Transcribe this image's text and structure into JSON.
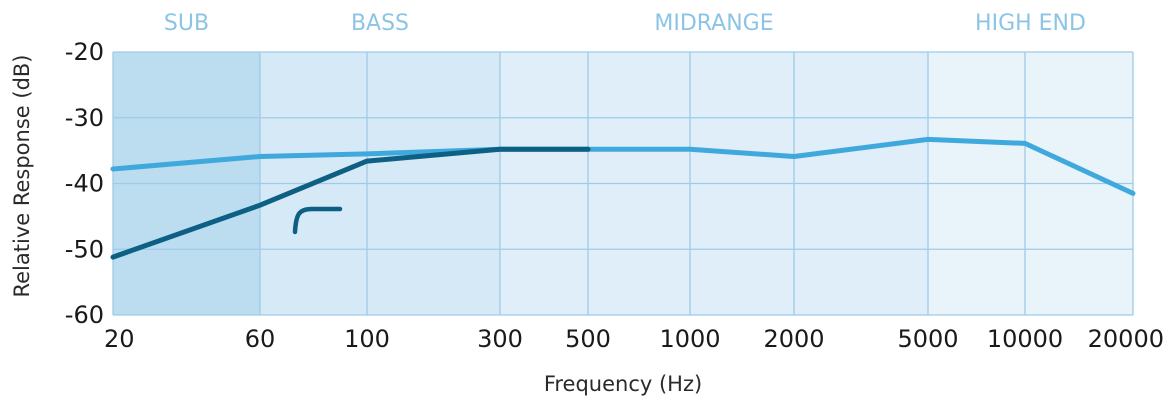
{
  "chart_data": {
    "type": "line",
    "title": "",
    "xlabel": "Frequency (Hz)",
    "ylabel": "Relative Response (dB)",
    "ylim": [
      -60,
      -20
    ],
    "y_ticks": [
      "-20",
      "-30",
      "-40",
      "-50",
      "-60"
    ],
    "x_ticks": [
      "20",
      "60",
      "100",
      "300",
      "500",
      "1000",
      "2000",
      "5000",
      "10000",
      "20000"
    ],
    "bands": [
      {
        "label": "SUB",
        "from": "20",
        "to": "60",
        "color": "#bcdcf0"
      },
      {
        "label": "BASS",
        "from": "60",
        "to": "300",
        "color": "#d6e9f6"
      },
      {
        "label": "MIDRANGE",
        "from": "300",
        "to": "5000",
        "color": "#dfeef8"
      },
      {
        "label": "HIGH END",
        "from": "5000",
        "to": "20000",
        "color": "#e8f3fa"
      }
    ],
    "grid": true,
    "series": [
      {
        "color": "#3fa9de",
        "points": [
          [
            "20",
            -37.8
          ],
          [
            "60",
            -35.9
          ],
          [
            "100",
            -35.5
          ],
          [
            "300",
            -34.8
          ],
          [
            "500",
            -34.8
          ],
          [
            "1000",
            -34.8
          ],
          [
            "2000",
            -35.9
          ],
          [
            "5000",
            -33.3
          ],
          [
            "10000",
            -33.9
          ],
          [
            "20000",
            -41.5
          ]
        ]
      },
      {
        "color": "#0e5f84",
        "points": [
          [
            "20",
            -51.2
          ],
          [
            "60",
            -43.3
          ],
          [
            "100",
            -36.6
          ],
          [
            "300",
            -34.8
          ],
          [
            "500",
            -34.8
          ]
        ]
      }
    ],
    "icon": "high-pass-filter-icon"
  }
}
